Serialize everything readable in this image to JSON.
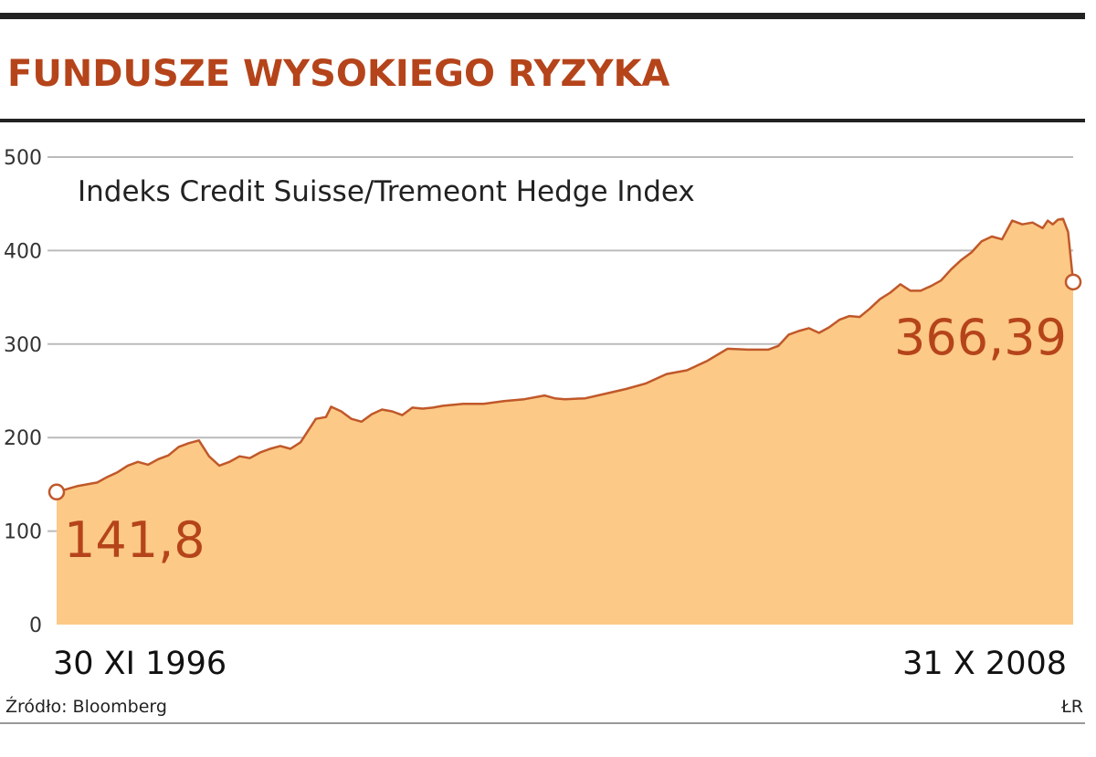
{
  "chart_data": {
    "type": "area",
    "title": "FUNDUSZE WYSOKIEGO RYZYKA",
    "subtitle": "Indeks Credit Suisse/Tremeont Hedge Index",
    "x_labels": [
      "30 XI 1996",
      "31 X 2008"
    ],
    "ylim": [
      0,
      500
    ],
    "yticks": [
      0,
      100,
      200,
      300,
      400,
      500
    ],
    "grid": true,
    "start_annotation": "141,8",
    "end_annotation": "366,39",
    "series": [
      {
        "points": [
          [
            0.0,
            141.8
          ],
          [
            0.02,
            148
          ],
          [
            0.04,
            152
          ],
          [
            0.05,
            158
          ],
          [
            0.06,
            163
          ],
          [
            0.07,
            170
          ],
          [
            0.08,
            174
          ],
          [
            0.09,
            171
          ],
          [
            0.1,
            177
          ],
          [
            0.11,
            181
          ],
          [
            0.12,
            190
          ],
          [
            0.13,
            194
          ],
          [
            0.14,
            197
          ],
          [
            0.15,
            180
          ],
          [
            0.16,
            170
          ],
          [
            0.17,
            174
          ],
          [
            0.18,
            180
          ],
          [
            0.19,
            178
          ],
          [
            0.2,
            184
          ],
          [
            0.21,
            188
          ],
          [
            0.22,
            191
          ],
          [
            0.23,
            188
          ],
          [
            0.24,
            195
          ],
          [
            0.255,
            220
          ],
          [
            0.265,
            222
          ],
          [
            0.27,
            233
          ],
          [
            0.28,
            228
          ],
          [
            0.29,
            220
          ],
          [
            0.3,
            217
          ],
          [
            0.31,
            225
          ],
          [
            0.32,
            230
          ],
          [
            0.33,
            228
          ],
          [
            0.34,
            224
          ],
          [
            0.35,
            232
          ],
          [
            0.36,
            231
          ],
          [
            0.37,
            232
          ],
          [
            0.38,
            234
          ],
          [
            0.4,
            236
          ],
          [
            0.42,
            236
          ],
          [
            0.44,
            239
          ],
          [
            0.46,
            241
          ],
          [
            0.48,
            245
          ],
          [
            0.49,
            242
          ],
          [
            0.5,
            241
          ],
          [
            0.52,
            242
          ],
          [
            0.54,
            247
          ],
          [
            0.56,
            252
          ],
          [
            0.58,
            258
          ],
          [
            0.6,
            268
          ],
          [
            0.62,
            272
          ],
          [
            0.64,
            282
          ],
          [
            0.66,
            295
          ],
          [
            0.68,
            294
          ],
          [
            0.7,
            294
          ],
          [
            0.71,
            298
          ],
          [
            0.72,
            310
          ],
          [
            0.73,
            314
          ],
          [
            0.74,
            317
          ],
          [
            0.75,
            312
          ],
          [
            0.76,
            318
          ],
          [
            0.77,
            326
          ],
          [
            0.78,
            330
          ],
          [
            0.79,
            329
          ],
          [
            0.8,
            338
          ],
          [
            0.81,
            348
          ],
          [
            0.82,
            355
          ],
          [
            0.83,
            364
          ],
          [
            0.84,
            357
          ],
          [
            0.85,
            357
          ],
          [
            0.86,
            362
          ],
          [
            0.87,
            368
          ],
          [
            0.88,
            380
          ],
          [
            0.89,
            390
          ],
          [
            0.9,
            398
          ],
          [
            0.91,
            410
          ],
          [
            0.92,
            415
          ],
          [
            0.93,
            412
          ],
          [
            0.94,
            432
          ],
          [
            0.95,
            428
          ],
          [
            0.96,
            430
          ],
          [
            0.97,
            424
          ],
          [
            0.975,
            432
          ],
          [
            0.98,
            428
          ],
          [
            0.985,
            433
          ],
          [
            0.99,
            434
          ],
          [
            0.995,
            420
          ],
          [
            1.0,
            366.39
          ]
        ]
      }
    ],
    "colors": {
      "accent": "#b5441b",
      "fill": "#fcc986",
      "line": "#c0582a",
      "grid": "#bbbbbb"
    }
  },
  "source": "Źródło: Bloomberg",
  "credit": "ŁR"
}
